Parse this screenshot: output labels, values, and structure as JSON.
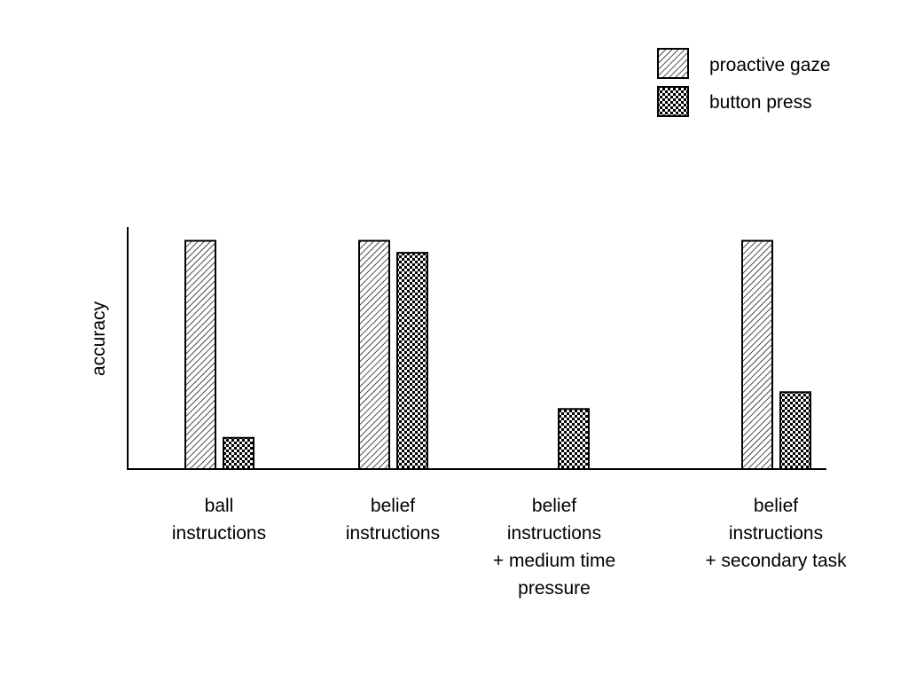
{
  "chart_data": {
    "type": "bar",
    "title": "",
    "xlabel": "",
    "ylabel": "accuracy",
    "ylim": [
      0,
      1
    ],
    "grid": false,
    "legend_position": "top-right",
    "categories": [
      [
        "ball",
        "instructions"
      ],
      [
        "belief",
        "instructions"
      ],
      [
        "belief",
        "instructions",
        "+ medium time",
        "pressure"
      ],
      [
        "belief",
        "instructions",
        "+ secondary task"
      ]
    ],
    "series": [
      {
        "name": "proactive gaze",
        "pattern": "diagonal-hatch",
        "values": [
          0.95,
          0.95,
          null,
          0.95
        ]
      },
      {
        "name": "button press",
        "pattern": "checkerboard",
        "values": [
          0.13,
          0.9,
          0.25,
          0.32
        ]
      }
    ],
    "colors": {
      "fill": "#ffffff",
      "stroke": "#000000"
    }
  }
}
